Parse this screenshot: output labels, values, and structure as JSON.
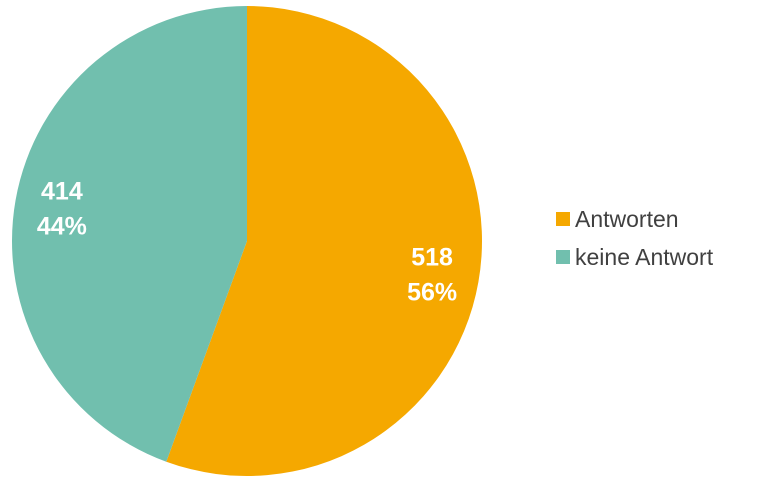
{
  "chart_data": {
    "type": "pie",
    "title": "",
    "categories": [
      "Antworten",
      "keine Antwort"
    ],
    "values": [
      518,
      414
    ],
    "percent_labels": [
      "56%",
      "44%"
    ],
    "colors": [
      "#F5A800",
      "#71BFAE"
    ],
    "start_angle_deg": 0,
    "direction": "clockwise",
    "legend_position": "right"
  },
  "legend": {
    "items": [
      {
        "label": "Antworten",
        "color": "#F5A800"
      },
      {
        "label": "keine Antwort",
        "color": "#71BFAE"
      }
    ]
  }
}
